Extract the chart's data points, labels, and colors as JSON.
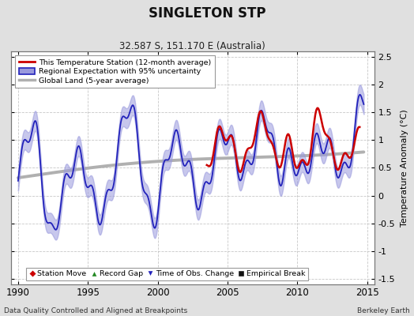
{
  "title": "SINGLETON STP",
  "subtitle": "32.587 S, 151.170 E (Australia)",
  "ylabel": "Temperature Anomaly (°C)",
  "xlabel_left": "Data Quality Controlled and Aligned at Breakpoints",
  "xlabel_right": "Berkeley Earth",
  "ylim": [
    -1.6,
    2.6
  ],
  "xlim": [
    1989.5,
    2015.5
  ],
  "yticks": [
    -1.5,
    -1.0,
    -0.5,
    0.0,
    0.5,
    1.0,
    1.5,
    2.0,
    2.5
  ],
  "xticks": [
    1990,
    1995,
    2000,
    2005,
    2010,
    2015
  ],
  "bg_color": "#e0e0e0",
  "plot_bg_color": "#ffffff",
  "grid_color": "#b0b0b0",
  "red_color": "#cc0000",
  "blue_color": "#2222bb",
  "blue_fill_color": "#9999dd",
  "gray_color": "#b0b0b0",
  "legend1_labels": [
    "This Temperature Station (12-month average)",
    "Regional Expectation with 95% uncertainty",
    "Global Land (5-year average)"
  ],
  "legend2_labels": [
    "Station Move",
    "Record Gap",
    "Time of Obs. Change",
    "Empirical Break"
  ]
}
